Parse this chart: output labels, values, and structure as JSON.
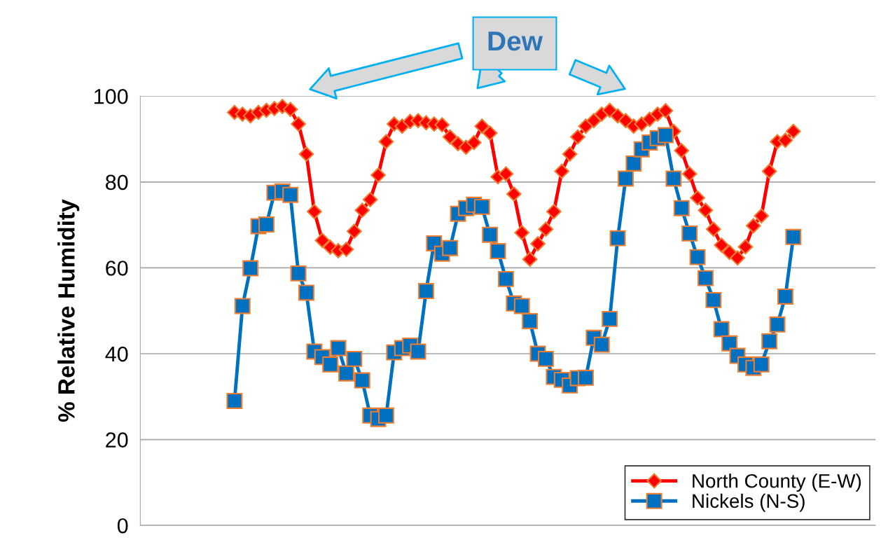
{
  "chart_data": {
    "type": "line",
    "ylabel": "% Relative Humidity",
    "annotations": [
      "Dew"
    ],
    "categories": [
      null,
      null,
      null,
      null,
      null,
      null,
      null,
      null,
      null,
      null,
      null,
      null,
      null,
      null,
      null,
      null,
      null,
      null,
      null,
      null,
      null,
      null,
      null,
      null,
      null,
      null,
      null,
      null,
      null,
      null,
      null,
      null,
      null,
      null,
      null,
      null,
      null,
      null,
      null,
      null,
      null,
      null,
      null,
      null,
      null,
      null,
      null,
      null,
      null,
      null,
      null,
      null,
      null,
      null,
      null,
      null,
      null,
      null,
      null,
      null,
      null,
      null,
      null,
      null,
      null,
      null,
      null,
      null,
      null,
      null,
      null
    ],
    "ylim": [
      0,
      100
    ],
    "yticks": [
      0,
      20,
      40,
      60,
      80,
      100
    ],
    "grid": "y",
    "legend": "bottom right",
    "line_style": "solid",
    "series": [
      {
        "name": "North County (E-W)",
        "color": "#ff0000",
        "marker": "diamond",
        "values": [
          96.2,
          95.8,
          95.4,
          96.2,
          96.7,
          97.1,
          97.6,
          96.9,
          93.5,
          86.5,
          73.1,
          66.4,
          64.8,
          64,
          64.3,
          68.5,
          73.4,
          75.9,
          81.6,
          89.4,
          93.5,
          93,
          94.1,
          94.3,
          93.8,
          93.5,
          93.3,
          90.5,
          88.9,
          88.1,
          89.2,
          93,
          91.4,
          81.2,
          81.9,
          77.2,
          68.2,
          62,
          65.6,
          69,
          73.1,
          82.5,
          86.5,
          90.5,
          93,
          94.3,
          95.8,
          96.7,
          95.4,
          94.3,
          93,
          93.5,
          94.6,
          95.8,
          96.6,
          91.8,
          87.3,
          81.9,
          76.3,
          73.4,
          69,
          65.3,
          63.6,
          62.3,
          64.9,
          69.8,
          72.1,
          82.5,
          89.4,
          89.7,
          91.8
        ]
      },
      {
        "name": "Nickels (N-S)",
        "color": "#0070c0",
        "marker": "square",
        "values": [
          29,
          51.1,
          59.9,
          69.7,
          70.1,
          77.5,
          77.8,
          77,
          58.7,
          54.2,
          40.5,
          39.2,
          37.5,
          41.3,
          35.4,
          38.8,
          33.8,
          25.6,
          24.8,
          25.6,
          40.3,
          41.3,
          41.9,
          40.5,
          54.6,
          65.7,
          63.3,
          64.6,
          72.6,
          73.9,
          74.7,
          74.2,
          67.7,
          63.9,
          57.4,
          51.7,
          51.1,
          47.6,
          40,
          38.8,
          34.6,
          33.9,
          32.6,
          34.3,
          34.4,
          43.7,
          42.1,
          48.1,
          66.9,
          80.8,
          84.3,
          87.6,
          89.2,
          90.2,
          90.9,
          80.8,
          73.9,
          68,
          62.5,
          57.6,
          52.5,
          45.7,
          42.4,
          39.5,
          37.5,
          36.7,
          37.5,
          42.9,
          46.8,
          53.3,
          67.2
        ]
      }
    ]
  }
}
